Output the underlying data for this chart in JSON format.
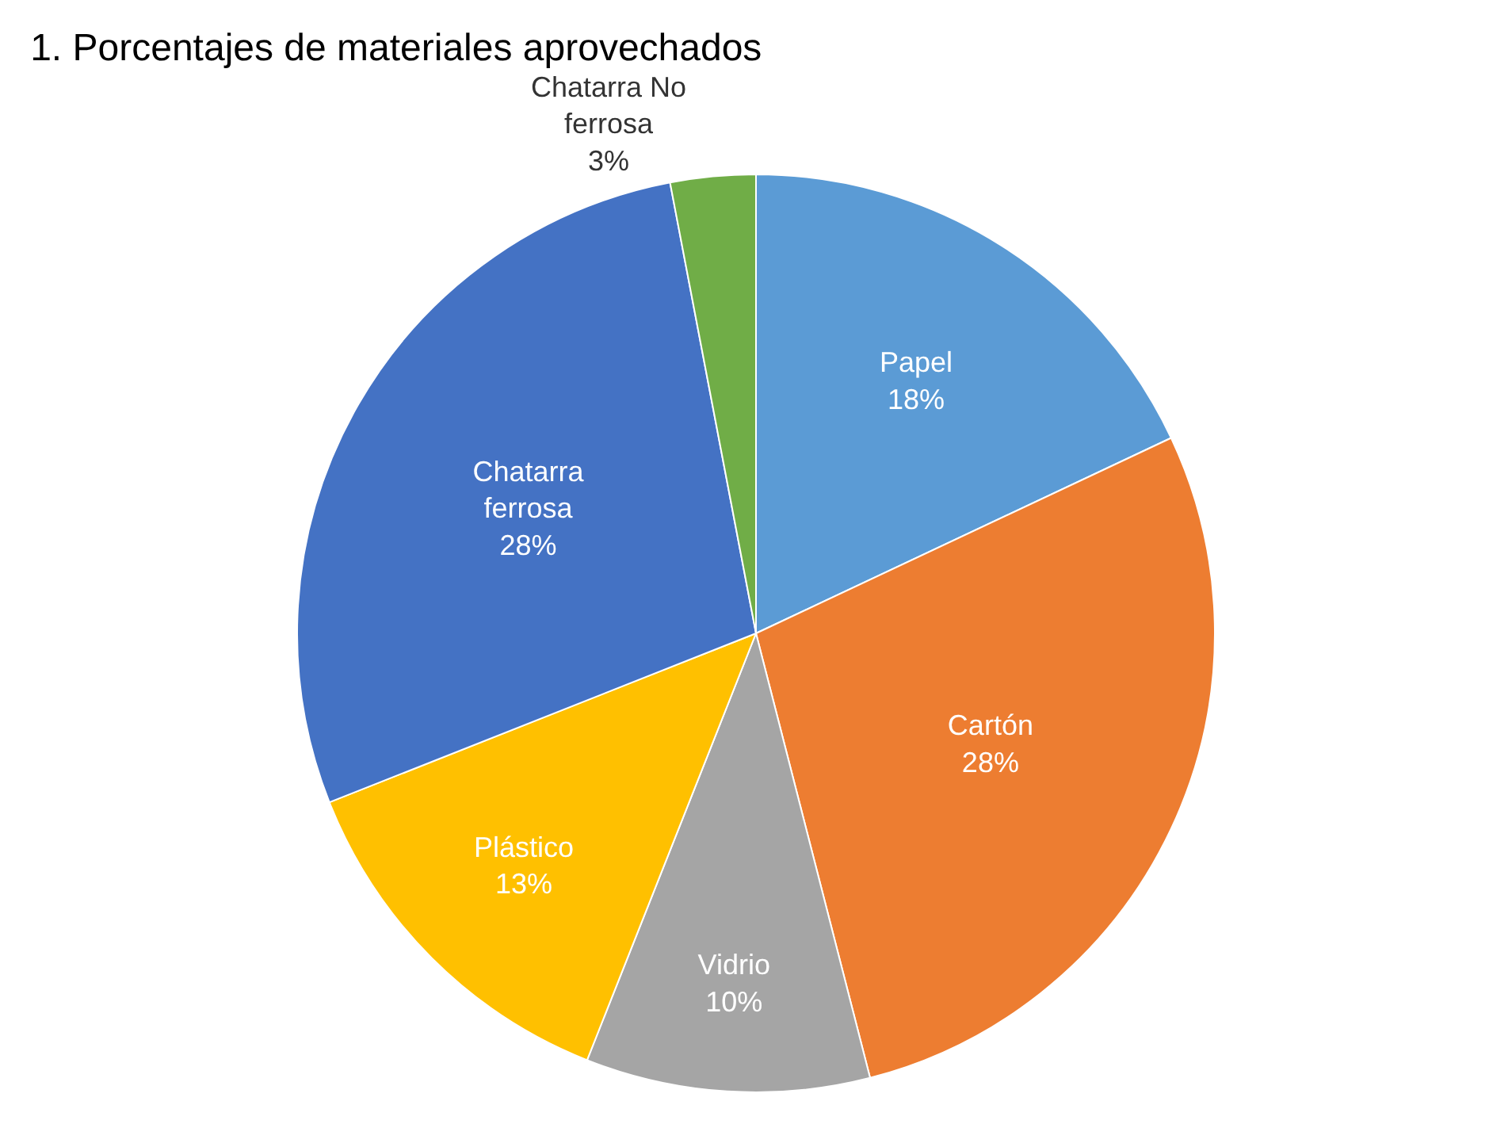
{
  "chart_data": {
    "type": "pie",
    "title": "1. Porcentajes de materiales aprovechados",
    "categories": [
      "Papel",
      "Cartón",
      "Vidrio",
      "Plástico",
      "Chatarra ferrosa",
      "Chatarra No ferrosa"
    ],
    "values": [
      18,
      28,
      10,
      13,
      28,
      3
    ],
    "value_labels": [
      "18%",
      "28%",
      "10%",
      "13%",
      "28%",
      "3%"
    ],
    "colors": [
      "#5b9bd5",
      "#ed7d31",
      "#a5a5a5",
      "#ffc000",
      "#4472c4",
      "#70ad47"
    ],
    "legend": false
  }
}
